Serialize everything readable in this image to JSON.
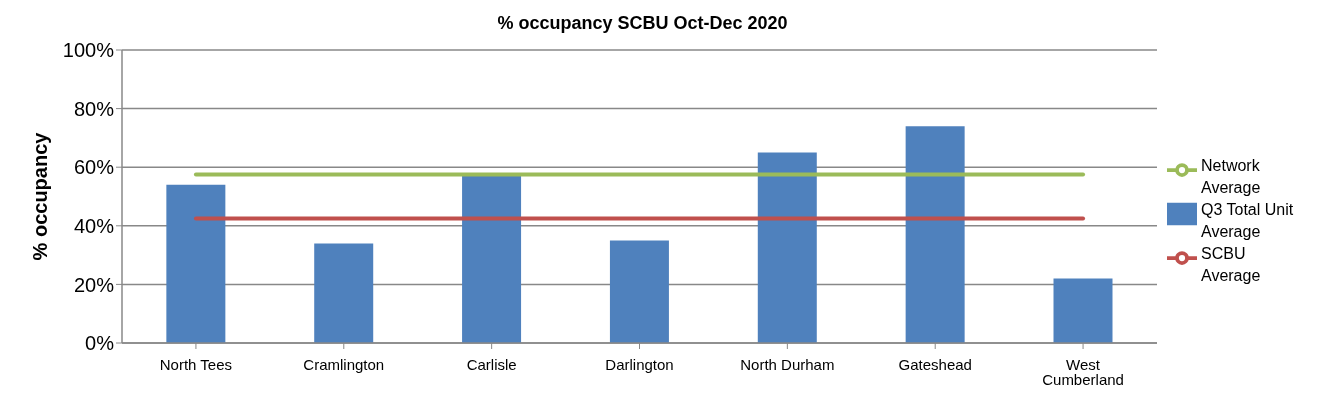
{
  "chart_data": {
    "type": "bar",
    "title": "% occupancy SCBU Oct-Dec 2020",
    "ylabel": "% occupancy",
    "categories": [
      "North Tees",
      "Cramlington",
      "Carlisle",
      "Darlington",
      "North Durham",
      "Gateshead",
      "West Cumberland"
    ],
    "series": [
      {
        "name": "Q3 Total Unit Average",
        "color": "#4f81bd",
        "values": [
          54,
          34,
          57,
          35,
          65,
          74,
          22
        ]
      },
      {
        "name": "SCBU Average",
        "type": "line",
        "color": "#c0504d",
        "values": [
          42.5,
          42.5,
          42.5,
          42.5,
          42.5,
          42.5,
          42.5
        ]
      },
      {
        "name": "Network Average",
        "type": "line",
        "color": "#9bbb59",
        "values": [
          57.5,
          57.5,
          57.5,
          57.5,
          57.5,
          57.5,
          57.5
        ]
      }
    ],
    "ylim": [
      0,
      100
    ],
    "yticks": [
      {
        "value": 0,
        "label": "0%"
      },
      {
        "value": 20,
        "label": "20%"
      },
      {
        "value": 40,
        "label": "40%"
      },
      {
        "value": 60,
        "label": "60%"
      },
      {
        "value": 80,
        "label": "80%"
      },
      {
        "value": 100,
        "label": "100%"
      }
    ],
    "grid": "y",
    "legend": "right",
    "marker": "none"
  }
}
